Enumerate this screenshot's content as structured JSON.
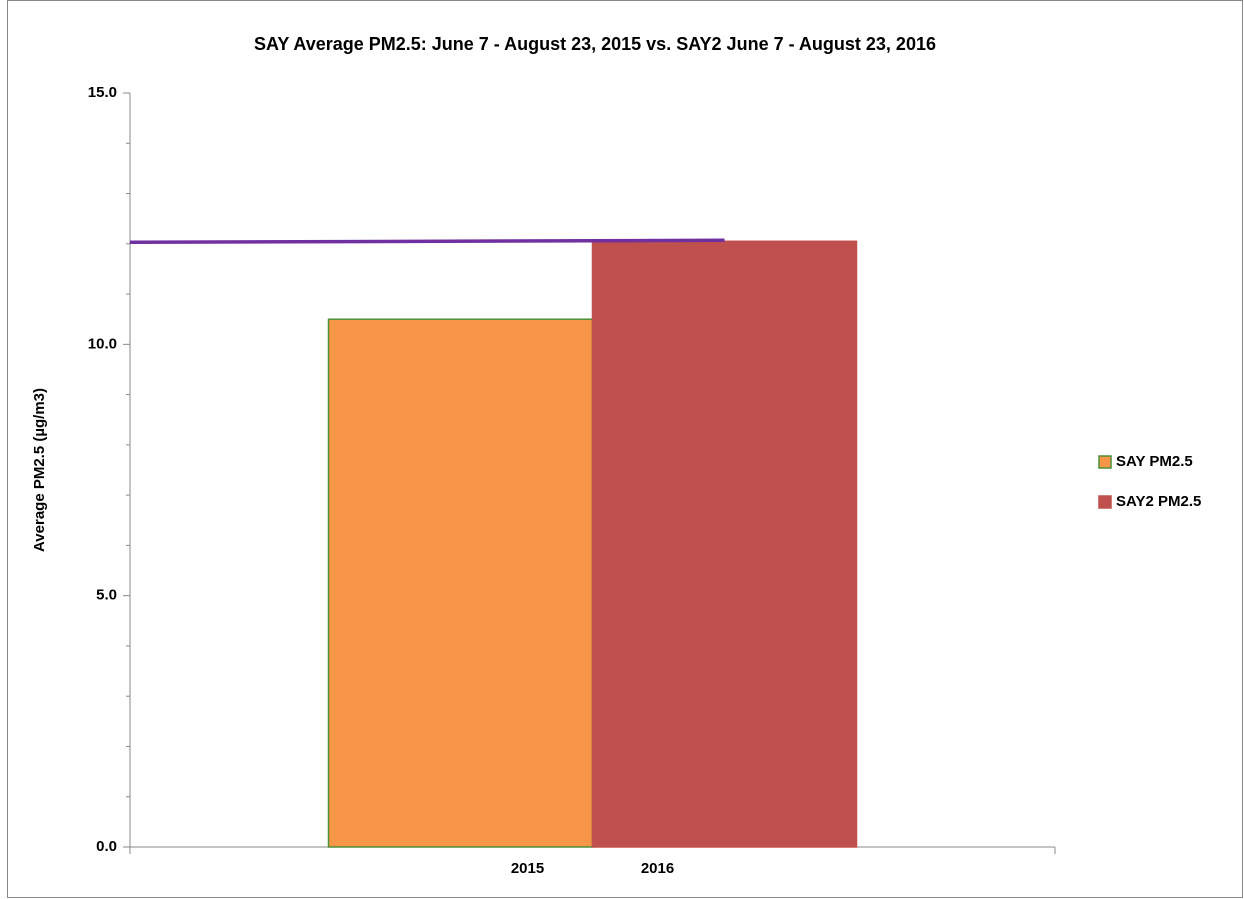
{
  "chart_data": {
    "type": "bar",
    "title": "SAY Average PM2.5: June 7 - August 23, 2015 vs. SAY2 June 7 - August 23, 2016",
    "y_label": "Average PM2.5 (µg/m3)",
    "categories": [
      "2015",
      "2016"
    ],
    "series": [
      {
        "name": "SAY PM2.5",
        "color": "#f79646",
        "border": "#4e8f3a",
        "values": [
          10.5,
          null
        ]
      },
      {
        "name": "SAY2 PM2.5",
        "color": "#c0504d",
        "border": "#c0504d",
        "values": [
          null,
          12.05
        ]
      }
    ],
    "reference_line": {
      "color": "#7030a0",
      "values": [
        12.03,
        12.07
      ]
    },
    "ylim": [
      0,
      15
    ],
    "yticks": [
      {
        "value": 0,
        "label": "0.0"
      },
      {
        "value": 5,
        "label": "5.0"
      },
      {
        "value": 10,
        "label": "10.0"
      },
      {
        "value": 15,
        "label": "15.0"
      }
    ],
    "yminorticks": [
      1,
      2,
      3,
      4,
      6,
      7,
      8,
      9,
      11,
      12,
      13,
      14
    ],
    "legend": "right"
  }
}
